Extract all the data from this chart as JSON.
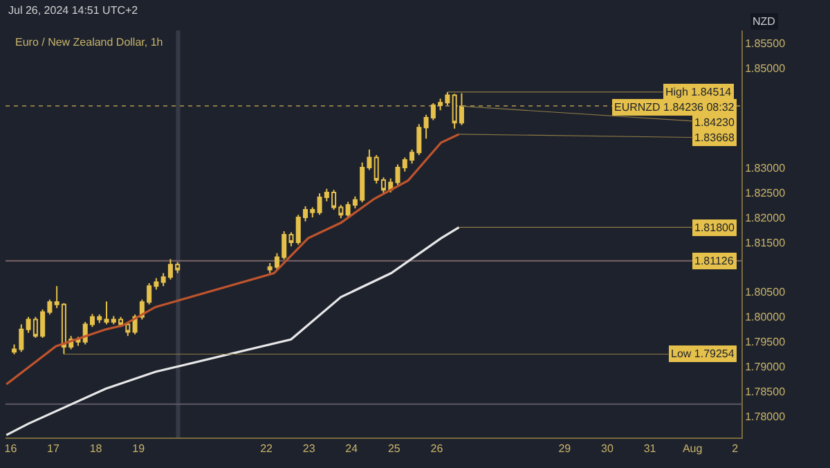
{
  "chart_data": {
    "type": "candlestick",
    "title": "Euro / New Zealand Dollar, 1h",
    "subtitle": "Jul 26, 2024 14:51 UTC+2",
    "x": [
      "2024-07-16T02:00",
      "2024-07-16T06:00",
      "2024-07-16T10:00",
      "2024-07-16T14:00",
      "2024-07-16T18:00",
      "2024-07-16T22:00",
      "2024-07-17T02:00",
      "2024-07-17T06:00",
      "2024-07-17T10:00",
      "2024-07-17T14:00",
      "2024-07-17T18:00",
      "2024-07-17T22:00",
      "2024-07-18T02:00",
      "2024-07-18T06:00",
      "2024-07-18T10:00",
      "2024-07-18T14:00",
      "2024-07-18T18:00",
      "2024-07-18T22:00",
      "2024-07-19T02:00",
      "2024-07-19T06:00",
      "2024-07-19T10:00",
      "2024-07-19T14:00",
      "2024-07-19T18:00",
      "2024-07-19T22:00",
      "2024-07-22T02:00",
      "2024-07-22T06:00",
      "2024-07-22T10:00",
      "2024-07-22T14:00",
      "2024-07-22T18:00",
      "2024-07-22T22:00",
      "2024-07-23T02:00",
      "2024-07-23T06:00",
      "2024-07-23T10:00",
      "2024-07-23T14:00",
      "2024-07-23T18:00",
      "2024-07-23T22:00",
      "2024-07-24T02:00",
      "2024-07-24T06:00",
      "2024-07-24T10:00",
      "2024-07-24T14:00",
      "2024-07-24T18:00",
      "2024-07-24T22:00",
      "2024-07-25T02:00",
      "2024-07-25T06:00",
      "2024-07-25T10:00",
      "2024-07-25T14:00",
      "2024-07-25T18:00",
      "2024-07-25T22:00",
      "2024-07-26T02:00",
      "2024-07-26T06:00",
      "2024-07-26T10:00",
      "2024-07-26T14:00"
    ],
    "ohlc": [
      [
        1.793,
        1.7945,
        1.7925,
        1.7935
      ],
      [
        1.7935,
        1.7985,
        1.793,
        1.7975
      ],
      [
        1.7975,
        1.8,
        1.7968,
        1.7995
      ],
      [
        1.7995,
        1.8,
        1.7958,
        1.7962
      ],
      [
        1.7962,
        1.8015,
        1.7958,
        1.801
      ],
      [
        1.801,
        1.8035,
        1.8005,
        1.803
      ],
      [
        1.803,
        1.8062,
        1.8018,
        1.8025
      ],
      [
        1.8025,
        1.8028,
        1.79254,
        1.794
      ],
      [
        1.794,
        1.7962,
        1.7935,
        1.7955
      ],
      [
        1.7955,
        1.796,
        1.7942,
        1.795
      ],
      [
        1.795,
        1.799,
        1.7945,
        1.7985
      ],
      [
        1.7985,
        1.8006,
        1.798,
        1.8
      ],
      [
        1.8,
        1.8005,
        1.7988,
        1.7995
      ],
      [
        1.7995,
        1.8031,
        1.7985,
        1.799
      ],
      [
        1.799,
        1.8002,
        1.7985,
        1.7995
      ],
      [
        1.7995,
        1.8,
        1.798,
        1.7985
      ],
      [
        1.7985,
        1.799,
        1.7962,
        1.797
      ],
      [
        1.797,
        1.8005,
        1.7965,
        1.8
      ],
      [
        1.8,
        1.8035,
        1.7995,
        1.803
      ],
      [
        1.803,
        1.8068,
        1.8025,
        1.8062
      ],
      [
        1.8062,
        1.8078,
        1.8055,
        1.807
      ],
      [
        1.807,
        1.8088,
        1.8062,
        1.808
      ],
      [
        1.808,
        1.8116,
        1.8075,
        1.8105
      ],
      [
        1.8105,
        1.811,
        1.8088,
        1.8095
      ],
      [
        1.8095,
        1.8108,
        1.8088,
        1.81
      ],
      [
        1.81,
        1.8128,
        1.8095,
        1.812
      ],
      [
        1.812,
        1.8172,
        1.8115,
        1.8165
      ],
      [
        1.8165,
        1.817,
        1.8142,
        1.815
      ],
      [
        1.815,
        1.8205,
        1.8145,
        1.82
      ],
      [
        1.82,
        1.8222,
        1.8192,
        1.8215
      ],
      [
        1.8215,
        1.822,
        1.82,
        1.821
      ],
      [
        1.821,
        1.8248,
        1.8205,
        1.824
      ],
      [
        1.824,
        1.8257,
        1.8232,
        1.825
      ],
      [
        1.825,
        1.8255,
        1.8215,
        1.822
      ],
      [
        1.822,
        1.8225,
        1.8198,
        1.8205
      ],
      [
        1.8205,
        1.8231,
        1.82,
        1.8225
      ],
      [
        1.8225,
        1.8242,
        1.8218,
        1.8235
      ],
      [
        1.8235,
        1.831,
        1.823,
        1.83
      ],
      [
        1.83,
        1.8336,
        1.8295,
        1.832
      ],
      [
        1.832,
        1.8325,
        1.8268,
        1.8275
      ],
      [
        1.8275,
        1.828,
        1.8248,
        1.8255
      ],
      [
        1.8255,
        1.8278,
        1.825,
        1.827
      ],
      [
        1.827,
        1.8306,
        1.8265,
        1.83
      ],
      [
        1.83,
        1.832,
        1.8292,
        1.8315
      ],
      [
        1.8315,
        1.8336,
        1.8308,
        1.833
      ],
      [
        1.833,
        1.8387,
        1.8325,
        1.838
      ],
      [
        1.838,
        1.8406,
        1.8358,
        1.84
      ],
      [
        1.84,
        1.8429,
        1.8395,
        1.8425
      ],
      [
        1.8425,
        1.8438,
        1.8415,
        1.843
      ],
      [
        1.843,
        1.84514,
        1.8425,
        1.8445
      ],
      [
        1.8445,
        1.8448,
        1.8378,
        1.839
      ],
      [
        1.839,
        1.8449,
        1.8385,
        1.8423
      ]
    ],
    "series": [
      {
        "type": "line",
        "color": "#c0542c",
        "x": [
          "2024-07-15T21:36",
          "2024-07-17T01:26",
          "2024-07-18T05:31",
          "2024-07-18T15:07",
          "2024-07-19T09:36",
          "2024-07-22T04:19",
          "2024-07-22T23:31",
          "2024-07-23T18:00",
          "2024-07-24T12:43",
          "2024-07-25T07:55",
          "2024-07-26T02:24",
          "2024-07-26T12:29"
        ],
        "values": [
          1.7865,
          1.7941,
          1.7975,
          1.7983,
          1.802,
          1.8088,
          1.8158,
          1.8189,
          1.8237,
          1.8274,
          1.835,
          1.83668
        ]
      },
      {
        "type": "line",
        "color": "#e8e8e8",
        "x": [
          "2024-07-15T21:36",
          "2024-07-16T10:05",
          "2024-07-18T05:31",
          "2024-07-19T09:36",
          "2024-07-22T13:55",
          "2024-07-23T18:00",
          "2024-07-24T22:19",
          "2024-07-26T02:24",
          "2024-07-26T12:29"
        ],
        "values": [
          1.7763,
          1.7786,
          1.7856,
          1.789,
          1.7955,
          1.804,
          1.8088,
          1.8158,
          1.818
        ]
      }
    ],
    "ref_lines": [
      {
        "axis": "y",
        "value": 1.84236,
        "label": "EURNZD 1.84236 08:32",
        "color": "#8c7a45",
        "line_style": "dotted"
      },
      {
        "axis": "y",
        "value": 1.81126,
        "label": "1.81126",
        "color": "#7a6468",
        "line_style": "solid"
      },
      {
        "axis": "y",
        "value": 1.7825,
        "color": "#5e5a66",
        "line_style": "solid"
      }
    ],
    "bands": [
      {
        "axis": "x",
        "from": "2024-07-19T21:07",
        "to": "2024-07-19T23:31",
        "color": "#363a47"
      }
    ],
    "annotations": [
      "NZD",
      {
        "text": "High 1.84514",
        "x": "2024-07-26T06:00",
        "y": 1.84514
      },
      {
        "text": "1.84230",
        "x": "2024-07-26T14:00",
        "y": 1.8423
      },
      {
        "text": "1.83668",
        "x": "2024-07-26T12:29",
        "y": 1.83668
      },
      {
        "text": "1.81800",
        "x": "2024-07-26T12:29",
        "y": 1.818
      },
      {
        "text": "Low 1.79254",
        "x": "2024-07-17T06:00",
        "y": 1.79254
      }
    ],
    "xlim": [
      "2024-07-15T21:07",
      "2024-08-02T03:36"
    ],
    "xticks": [
      {
        "value": "2024-07-16",
        "label": "16"
      },
      {
        "value": "2024-07-17",
        "label": "17"
      },
      {
        "value": "2024-07-18",
        "label": "18"
      },
      {
        "value": "2024-07-19",
        "label": "19"
      },
      {
        "value": "2024-07-22",
        "label": "22"
      },
      {
        "value": "2024-07-23",
        "label": "23"
      },
      {
        "value": "2024-07-24",
        "label": "24"
      },
      {
        "value": "2024-07-25",
        "label": "25"
      },
      {
        "value": "2024-07-26",
        "label": "26"
      },
      {
        "value": "2024-07-29",
        "label": "29"
      },
      {
        "value": "2024-07-30",
        "label": "30"
      },
      {
        "value": "2024-07-31",
        "label": "31"
      },
      {
        "value": "2024-08-01",
        "label": "Aug"
      },
      {
        "value": "2024-08-02",
        "label": "2"
      }
    ],
    "ylim": [
      1.7758,
      1.8575
    ],
    "yticks": [
      {
        "value": 1.78,
        "label": "1.78000"
      },
      {
        "value": 1.785,
        "label": "1.78500"
      },
      {
        "value": 1.79,
        "label": "1.79000"
      },
      {
        "value": 1.795,
        "label": "1.79500"
      },
      {
        "value": 1.8,
        "label": "1.80000"
      },
      {
        "value": 1.805,
        "label": "1.80500"
      },
      {
        "value": 1.815,
        "label": "1.81500"
      },
      {
        "value": 1.82,
        "label": "1.82000"
      },
      {
        "value": 1.825,
        "label": "1.82500"
      },
      {
        "value": 1.83,
        "label": "1.83000"
      },
      {
        "value": 1.85,
        "label": "1.85000"
      },
      {
        "value": 1.855,
        "label": "1.85500"
      }
    ],
    "grid": false
  }
}
